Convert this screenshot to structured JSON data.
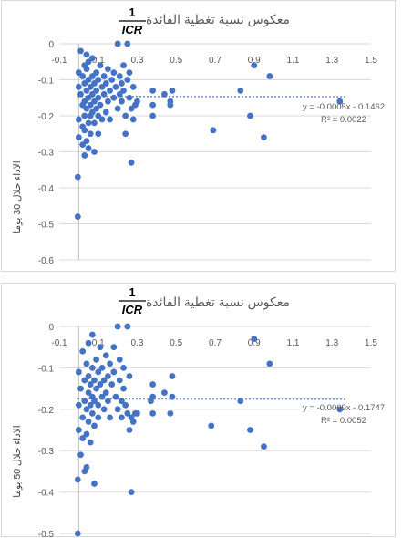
{
  "colors": {
    "marker": "#4472C4",
    "trend": "#4472C4",
    "grid": "#d9d9d9",
    "axis_text": "#595959"
  },
  "chart_data": [
    {
      "type": "scatter",
      "title": "معكوس نسبة تغطية الفائدة",
      "title_fraction": {
        "numerator": "1",
        "denominator": "ICR"
      },
      "ylabel": "الاداء خلال 30 يوما",
      "xlim": [
        -0.1,
        1.5
      ],
      "ylim": [
        -0.6,
        0
      ],
      "xticks": [
        "-0.1",
        "0.1",
        "0.3",
        "0.5",
        "0.7",
        "0.9",
        "1.1",
        "1.3",
        "1.5"
      ],
      "yticks": [
        "0",
        "-0.1",
        "-0.2",
        "-0.3",
        "-0.4",
        "-0.5",
        "-0.6"
      ],
      "grid": true,
      "trendline": {
        "slope": -0.0005,
        "intercept": -0.1462,
        "equation": "y = -0.0005x - 0.1462",
        "r2": "R² = 0.0022"
      },
      "points": [
        [
          -0.005,
          -0.37
        ],
        [
          -0.005,
          -0.48
        ],
        [
          0.0,
          -0.21
        ],
        [
          0.0,
          -0.26
        ],
        [
          0.0,
          -0.12
        ],
        [
          0.0,
          -0.08
        ],
        [
          0.01,
          -0.02
        ],
        [
          0.01,
          -0.14
        ],
        [
          0.02,
          -0.17
        ],
        [
          0.02,
          -0.23
        ],
        [
          0.02,
          -0.28
        ],
        [
          0.02,
          -0.09
        ],
        [
          0.03,
          -0.06
        ],
        [
          0.03,
          -0.11
        ],
        [
          0.03,
          -0.16
        ],
        [
          0.03,
          -0.2
        ],
        [
          0.03,
          -0.24
        ],
        [
          0.03,
          -0.31
        ],
        [
          0.04,
          -0.03
        ],
        [
          0.04,
          -0.13
        ],
        [
          0.04,
          -0.18
        ],
        [
          0.04,
          -0.27
        ],
        [
          0.04,
          -0.07
        ],
        [
          0.05,
          -0.1
        ],
        [
          0.05,
          -0.15
        ],
        [
          0.05,
          -0.22
        ],
        [
          0.05,
          -0.05
        ],
        [
          0.05,
          -0.29
        ],
        [
          0.06,
          -0.12
        ],
        [
          0.06,
          -0.17
        ],
        [
          0.06,
          -0.2
        ],
        [
          0.06,
          -0.25
        ],
        [
          0.07,
          -0.09
        ],
        [
          0.07,
          -0.14
        ],
        [
          0.07,
          -0.19
        ],
        [
          0.07,
          -0.04
        ],
        [
          0.08,
          -0.11
        ],
        [
          0.08,
          -0.16
        ],
        [
          0.08,
          -0.22
        ],
        [
          0.08,
          -0.3
        ],
        [
          0.09,
          -0.13
        ],
        [
          0.09,
          -0.18
        ],
        [
          0.09,
          -0.08
        ],
        [
          0.1,
          -0.15
        ],
        [
          0.1,
          -0.2
        ],
        [
          0.1,
          -0.25
        ],
        [
          0.1,
          -0.1
        ],
        [
          0.11,
          -0.17
        ],
        [
          0.11,
          -0.06
        ],
        [
          0.12,
          -0.12
        ],
        [
          0.12,
          -0.21
        ],
        [
          0.13,
          -0.14
        ],
        [
          0.13,
          -0.09
        ],
        [
          0.14,
          -0.19
        ],
        [
          0.14,
          -0.11
        ],
        [
          0.15,
          -0.16
        ],
        [
          0.15,
          -0.07
        ],
        [
          0.16,
          -0.13
        ],
        [
          0.16,
          -0.21
        ],
        [
          0.17,
          -0.1
        ],
        [
          0.18,
          -0.15
        ],
        [
          0.18,
          -0.08
        ],
        [
          0.19,
          -0.12
        ],
        [
          0.2,
          -0.18
        ],
        [
          0.2,
          -0.0
        ],
        [
          0.21,
          -0.09
        ],
        [
          0.21,
          -0.14
        ],
        [
          0.22,
          -0.11
        ],
        [
          0.22,
          -0.16
        ],
        [
          0.23,
          -0.13
        ],
        [
          0.23,
          -0.06
        ],
        [
          0.24,
          -0.2
        ],
        [
          0.24,
          -0.25
        ],
        [
          0.25,
          -0.1
        ],
        [
          0.25,
          -0.0
        ],
        [
          0.26,
          -0.15
        ],
        [
          0.26,
          -0.08
        ],
        [
          0.27,
          -0.18
        ],
        [
          0.27,
          -0.33
        ],
        [
          0.28,
          -0.12
        ],
        [
          0.28,
          -0.21
        ],
        [
          0.29,
          -0.17
        ],
        [
          0.3,
          -0.16
        ],
        [
          0.38,
          -0.13
        ],
        [
          0.38,
          -0.17
        ],
        [
          0.38,
          -0.2
        ],
        [
          0.44,
          -0.14
        ],
        [
          0.48,
          -0.13
        ],
        [
          0.47,
          -0.16
        ],
        [
          0.47,
          -0.17
        ],
        [
          0.69,
          -0.24
        ],
        [
          0.83,
          -0.13
        ],
        [
          0.88,
          -0.2
        ],
        [
          0.9,
          -0.06
        ],
        [
          0.95,
          -0.26
        ],
        [
          0.98,
          -0.09
        ],
        [
          1.34,
          -0.16
        ]
      ]
    },
    {
      "type": "scatter",
      "title": "معكوس نسبة تغطية الفائدة",
      "title_fraction": {
        "numerator": "1",
        "denominator": "ICR"
      },
      "ylabel": "الاداء خلال 50 يوما",
      "xlim": [
        -0.1,
        1.5
      ],
      "ylim": [
        -0.5,
        0
      ],
      "xticks": [
        "-0.1",
        "0.1",
        "0.3",
        "0.5",
        "0.7",
        "0.9",
        "1.1",
        "1.3",
        "1.5"
      ],
      "yticks": [
        "0",
        "-0.1",
        "-0.2",
        "-0.3",
        "-0.4",
        "-0.5"
      ],
      "grid": true,
      "trendline": {
        "slope": -0.0009,
        "intercept": -0.1747,
        "equation": "y = -0.0009x - 0.1747",
        "r2": "R² = 0.0052"
      },
      "points": [
        [
          -0.005,
          -0.5
        ],
        [
          -0.005,
          -0.37
        ],
        [
          0.0,
          -0.25
        ],
        [
          0.0,
          -0.19
        ],
        [
          0.0,
          -0.11
        ],
        [
          0.01,
          -0.31
        ],
        [
          0.01,
          -0.15
        ],
        [
          0.02,
          -0.06
        ],
        [
          0.02,
          -0.22
        ],
        [
          0.02,
          -0.27
        ],
        [
          0.03,
          -0.13
        ],
        [
          0.03,
          -0.18
        ],
        [
          0.03,
          -0.35
        ],
        [
          0.04,
          -0.09
        ],
        [
          0.04,
          -0.2
        ],
        [
          0.04,
          -0.26
        ],
        [
          0.04,
          -0.34
        ],
        [
          0.05,
          -0.16
        ],
        [
          0.05,
          -0.12
        ],
        [
          0.05,
          -0.23
        ],
        [
          0.05,
          -0.04
        ],
        [
          0.06,
          -0.14
        ],
        [
          0.06,
          -0.19
        ],
        [
          0.06,
          -0.28
        ],
        [
          0.07,
          -0.1
        ],
        [
          0.07,
          -0.17
        ],
        [
          0.07,
          -0.21
        ],
        [
          0.07,
          -0.02
        ],
        [
          0.08,
          -0.13
        ],
        [
          0.08,
          -0.18
        ],
        [
          0.08,
          -0.24
        ],
        [
          0.08,
          -0.38
        ],
        [
          0.09,
          -0.15
        ],
        [
          0.09,
          -0.08
        ],
        [
          0.1,
          -0.11
        ],
        [
          0.1,
          -0.19
        ],
        [
          0.1,
          -0.22
        ],
        [
          0.11,
          -0.14
        ],
        [
          0.11,
          -0.05
        ],
        [
          0.12,
          -0.17
        ],
        [
          0.12,
          -0.1
        ],
        [
          0.13,
          -0.2
        ],
        [
          0.13,
          -0.13
        ],
        [
          0.14,
          -0.16
        ],
        [
          0.14,
          -0.07
        ],
        [
          0.15,
          -0.12
        ],
        [
          0.15,
          -0.18
        ],
        [
          0.16,
          -0.09
        ],
        [
          0.16,
          -0.22
        ],
        [
          0.17,
          -0.14
        ],
        [
          0.18,
          -0.11
        ],
        [
          0.18,
          -0.05
        ],
        [
          0.19,
          -0.17
        ],
        [
          0.2,
          -0.0
        ],
        [
          0.2,
          -0.2
        ],
        [
          0.21,
          -0.13
        ],
        [
          0.21,
          -0.08
        ],
        [
          0.22,
          -0.18
        ],
        [
          0.22,
          -0.22
        ],
        [
          0.23,
          -0.15
        ],
        [
          0.23,
          -0.1
        ],
        [
          0.24,
          -0.19
        ],
        [
          0.25,
          -0.0
        ],
        [
          0.25,
          -0.21
        ],
        [
          0.26,
          -0.12
        ],
        [
          0.26,
          -0.25
        ],
        [
          0.27,
          -0.4
        ],
        [
          0.27,
          -0.22
        ],
        [
          0.28,
          -0.23
        ],
        [
          0.29,
          -0.21
        ],
        [
          0.3,
          -0.21
        ],
        [
          0.37,
          -0.18
        ],
        [
          0.38,
          -0.14
        ],
        [
          0.38,
          -0.17
        ],
        [
          0.38,
          -0.21
        ],
        [
          0.44,
          -0.16
        ],
        [
          0.48,
          -0.12
        ],
        [
          0.47,
          -0.21
        ],
        [
          0.48,
          -0.17
        ],
        [
          0.68,
          -0.24
        ],
        [
          0.83,
          -0.18
        ],
        [
          0.88,
          -0.25
        ],
        [
          0.9,
          -0.03
        ],
        [
          0.95,
          -0.29
        ],
        [
          0.98,
          -0.09
        ],
        [
          1.34,
          -0.2
        ]
      ]
    }
  ]
}
